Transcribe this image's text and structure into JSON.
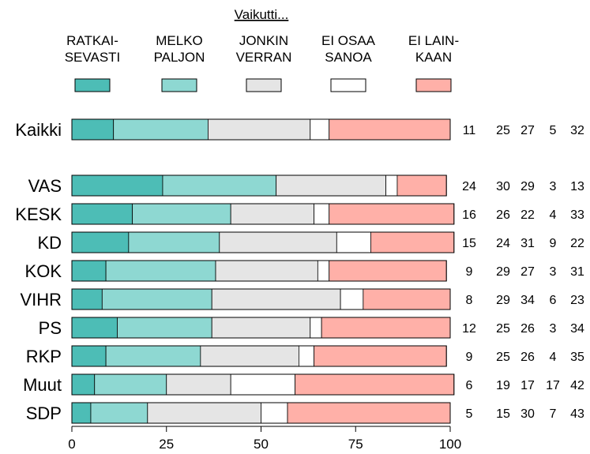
{
  "chart_data": {
    "type": "bar",
    "orientation": "horizontal",
    "stacked": true,
    "legend_title": "Vaikutti...",
    "legend_placement": "top",
    "xlim": [
      0,
      100
    ],
    "x_ticks": [
      0,
      25,
      50,
      75,
      100
    ],
    "series": [
      {
        "name": "RATKAI-\nSEVASTI",
        "color": "#4DBDB6"
      },
      {
        "name": "MELKO\nPALJON",
        "color": "#8ED8D2"
      },
      {
        "name": "JONKIN\nVERRAN",
        "color": "#E5E5E5"
      },
      {
        "name": "EI OSAA\nSANOA",
        "color": "#FFFFFF"
      },
      {
        "name": "EI LAIN-\nKAAN",
        "color": "#FFB0A8"
      }
    ],
    "rows": [
      {
        "label": "Kaikki",
        "values": [
          11,
          25,
          27,
          5,
          32
        ]
      },
      {
        "label": "VAS",
        "values": [
          24,
          30,
          29,
          3,
          13
        ]
      },
      {
        "label": "KESK",
        "values": [
          16,
          26,
          22,
          4,
          33
        ]
      },
      {
        "label": "KD",
        "values": [
          15,
          24,
          31,
          9,
          22
        ]
      },
      {
        "label": "KOK",
        "values": [
          9,
          29,
          27,
          3,
          31
        ]
      },
      {
        "label": "VIHR",
        "values": [
          8,
          29,
          34,
          6,
          23
        ]
      },
      {
        "label": "PS",
        "values": [
          12,
          25,
          26,
          3,
          34
        ]
      },
      {
        "label": "RKP",
        "values": [
          9,
          25,
          26,
          4,
          35
        ]
      },
      {
        "label": "Muut",
        "values": [
          6,
          19,
          17,
          17,
          42
        ]
      },
      {
        "label": "SDP",
        "values": [
          5,
          15,
          30,
          7,
          43
        ]
      }
    ]
  }
}
